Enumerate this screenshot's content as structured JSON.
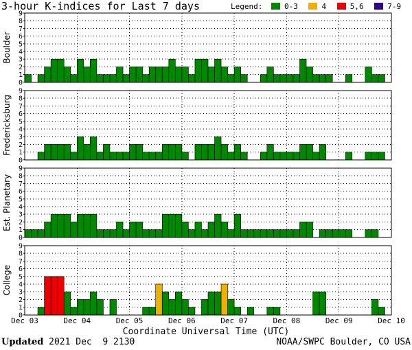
{
  "title": "3-hour K-indices for Last 7 days",
  "legend": {
    "label": "Legend:",
    "items": [
      {
        "label": "0-3",
        "color": "#008800"
      },
      {
        "label": "4",
        "color": "#f0b000"
      },
      {
        "label": "5,6",
        "color": "#ee0000"
      },
      {
        "label": "7-9",
        "color": "#330088"
      }
    ]
  },
  "footer": {
    "updated_label": "Updated",
    "updated_value": "2021 Dec  9 2130",
    "source": "NOAA/SWPC Boulder, CO USA"
  },
  "chart_data": {
    "type": "bar",
    "xlabel": "Coordinate Universal Time (UTC)",
    "x_ticks": [
      "Dec 03",
      "Dec 04",
      "Dec 05",
      "Dec 06",
      "Dec 07",
      "Dec 08",
      "Dec 09",
      "Dec 10"
    ],
    "ylim": [
      0,
      9
    ],
    "y_ticks": [
      "0",
      "1",
      "2",
      "3",
      "4",
      "5",
      "6",
      "7",
      "8",
      "9"
    ],
    "bins_per_day": 8,
    "days": 7,
    "color_scale": [
      {
        "range": "0-3",
        "color": "#008800"
      },
      {
        "range": "4",
        "color": "#f0b000"
      },
      {
        "range": "5,6",
        "color": "#ee0000"
      },
      {
        "range": "7-9",
        "color": "#330088"
      }
    ],
    "panels": [
      {
        "name": "Boulder",
        "values": [
          1,
          0,
          1,
          2,
          3,
          3,
          2,
          1,
          3,
          2,
          3,
          1,
          1,
          1,
          2,
          1,
          2,
          2,
          1,
          2,
          2,
          2,
          3,
          2,
          2,
          1,
          3,
          3,
          2,
          3,
          2,
          1,
          2,
          1,
          0,
          0,
          1,
          2,
          1,
          1,
          1,
          1,
          3,
          2,
          1,
          1,
          1,
          0,
          0,
          1,
          0,
          0,
          2,
          1,
          1,
          0
        ]
      },
      {
        "name": "Fredericksburg",
        "values": [
          0,
          0,
          1,
          2,
          2,
          2,
          2,
          1,
          3,
          2,
          3,
          1,
          2,
          1,
          1,
          1,
          2,
          2,
          1,
          1,
          1,
          2,
          2,
          2,
          1,
          0,
          2,
          2,
          2,
          3,
          2,
          1,
          2,
          1,
          0,
          0,
          1,
          2,
          1,
          1,
          1,
          1,
          2,
          2,
          1,
          2,
          0,
          0,
          0,
          1,
          0,
          0,
          1,
          1,
          1,
          0
        ]
      },
      {
        "name": "Est. Planetary",
        "values": [
          1,
          1,
          1,
          2,
          3,
          3,
          3,
          2,
          3,
          3,
          3,
          1,
          1,
          1,
          2,
          1,
          2,
          2,
          1,
          1,
          1,
          3,
          3,
          3,
          2,
          1,
          2,
          1,
          2,
          3,
          2,
          1,
          3,
          1,
          1,
          1,
          1,
          1,
          1,
          1,
          1,
          1,
          2,
          2,
          0,
          1,
          1,
          1,
          1,
          1,
          0,
          0,
          1,
          1,
          0,
          0
        ]
      },
      {
        "name": "College",
        "values": [
          0,
          0,
          1,
          5,
          5,
          5,
          3,
          1,
          2,
          2,
          3,
          2,
          0,
          2,
          0,
          0,
          0,
          0,
          1,
          1,
          4,
          3,
          2,
          3,
          2,
          1,
          0,
          2,
          3,
          3,
          4,
          2,
          1,
          0,
          1,
          0,
          0,
          1,
          1,
          0,
          0,
          0,
          0,
          0,
          3,
          3,
          0,
          0,
          0,
          0,
          0,
          0,
          0,
          2,
          1,
          0
        ]
      }
    ]
  }
}
